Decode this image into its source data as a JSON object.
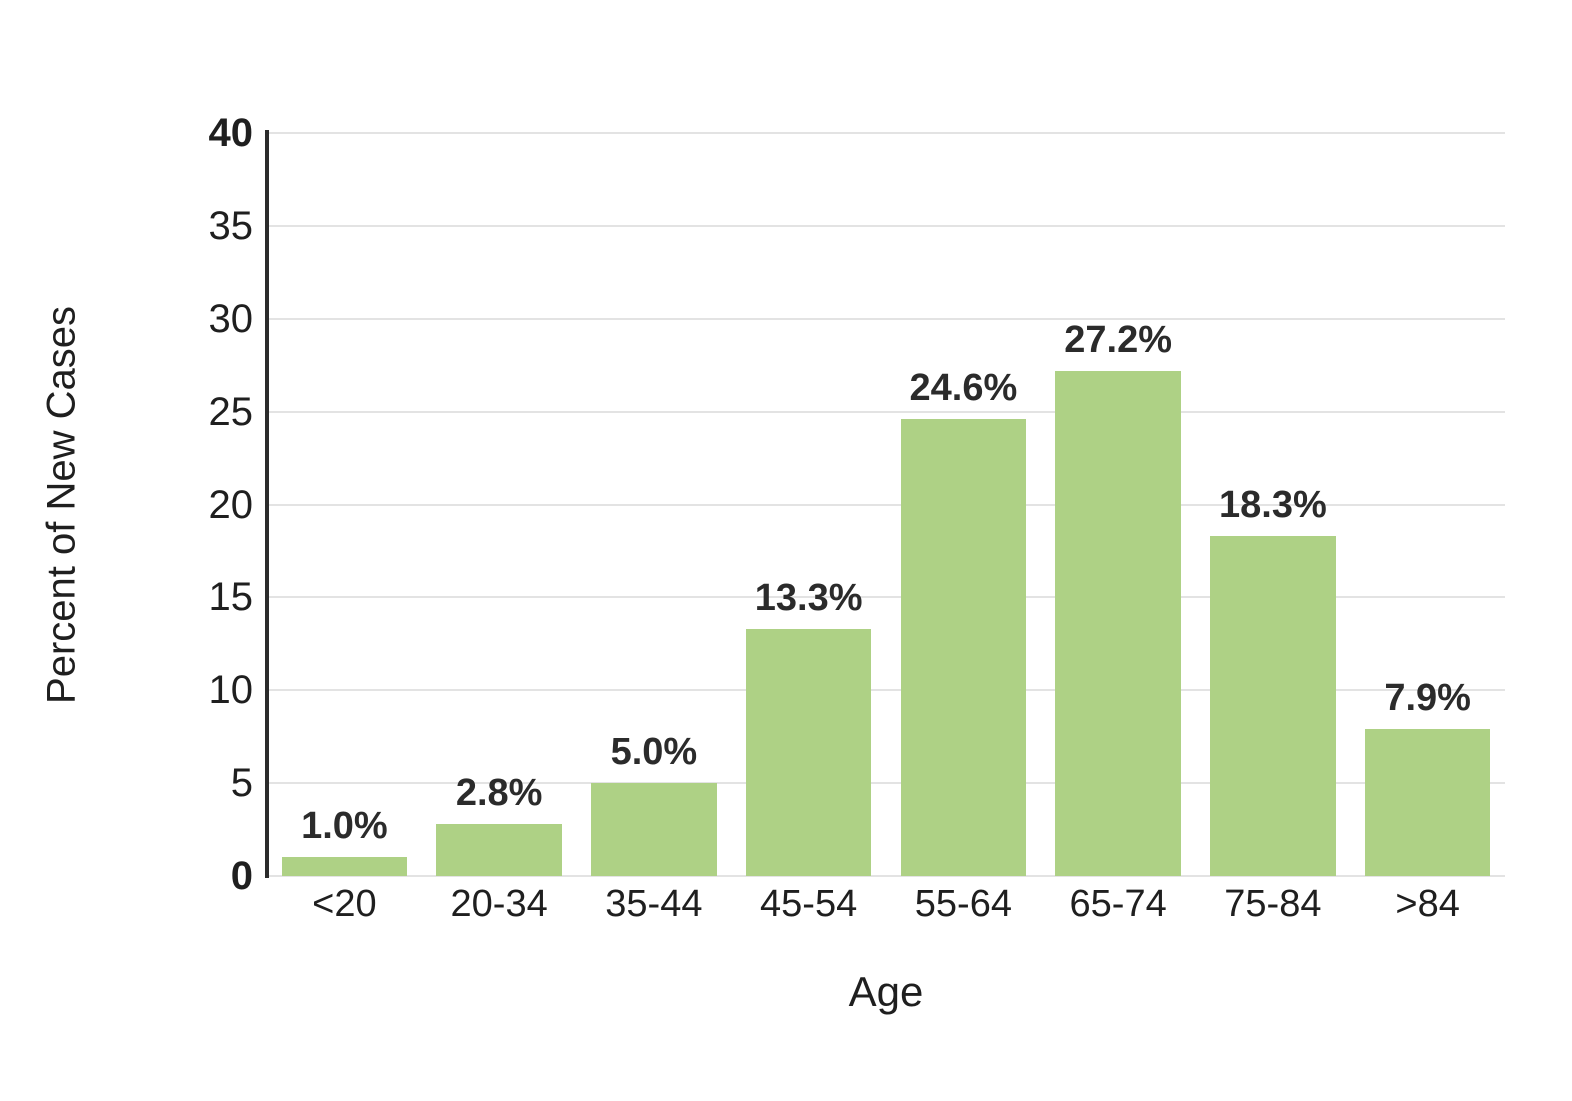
{
  "chart_data": {
    "type": "bar",
    "title": "",
    "categories": [
      "<20",
      "20-34",
      "35-44",
      "45-54",
      "55-64",
      "65-74",
      "75-84",
      ">84"
    ],
    "values": [
      1.0,
      2.8,
      5.0,
      13.3,
      24.6,
      27.2,
      18.3,
      7.9
    ],
    "data_labels": [
      "1.0%",
      "2.8%",
      "5.0%",
      "13.3%",
      "24.6%",
      "27.2%",
      "18.3%",
      "7.9%"
    ],
    "xlabel": "Age",
    "ylabel": "Percent of New Cases",
    "ylim": [
      0,
      40
    ],
    "yticks": [
      0,
      5,
      10,
      15,
      20,
      25,
      30,
      35,
      40
    ],
    "grid": true,
    "legend": "none",
    "bar_color": "#aed185",
    "gridline_color": "#e3e3e3",
    "axis_line_color": "#2b2b2b",
    "text_color": "#1f1f1f",
    "data_label_color": "#2b2b2b"
  }
}
